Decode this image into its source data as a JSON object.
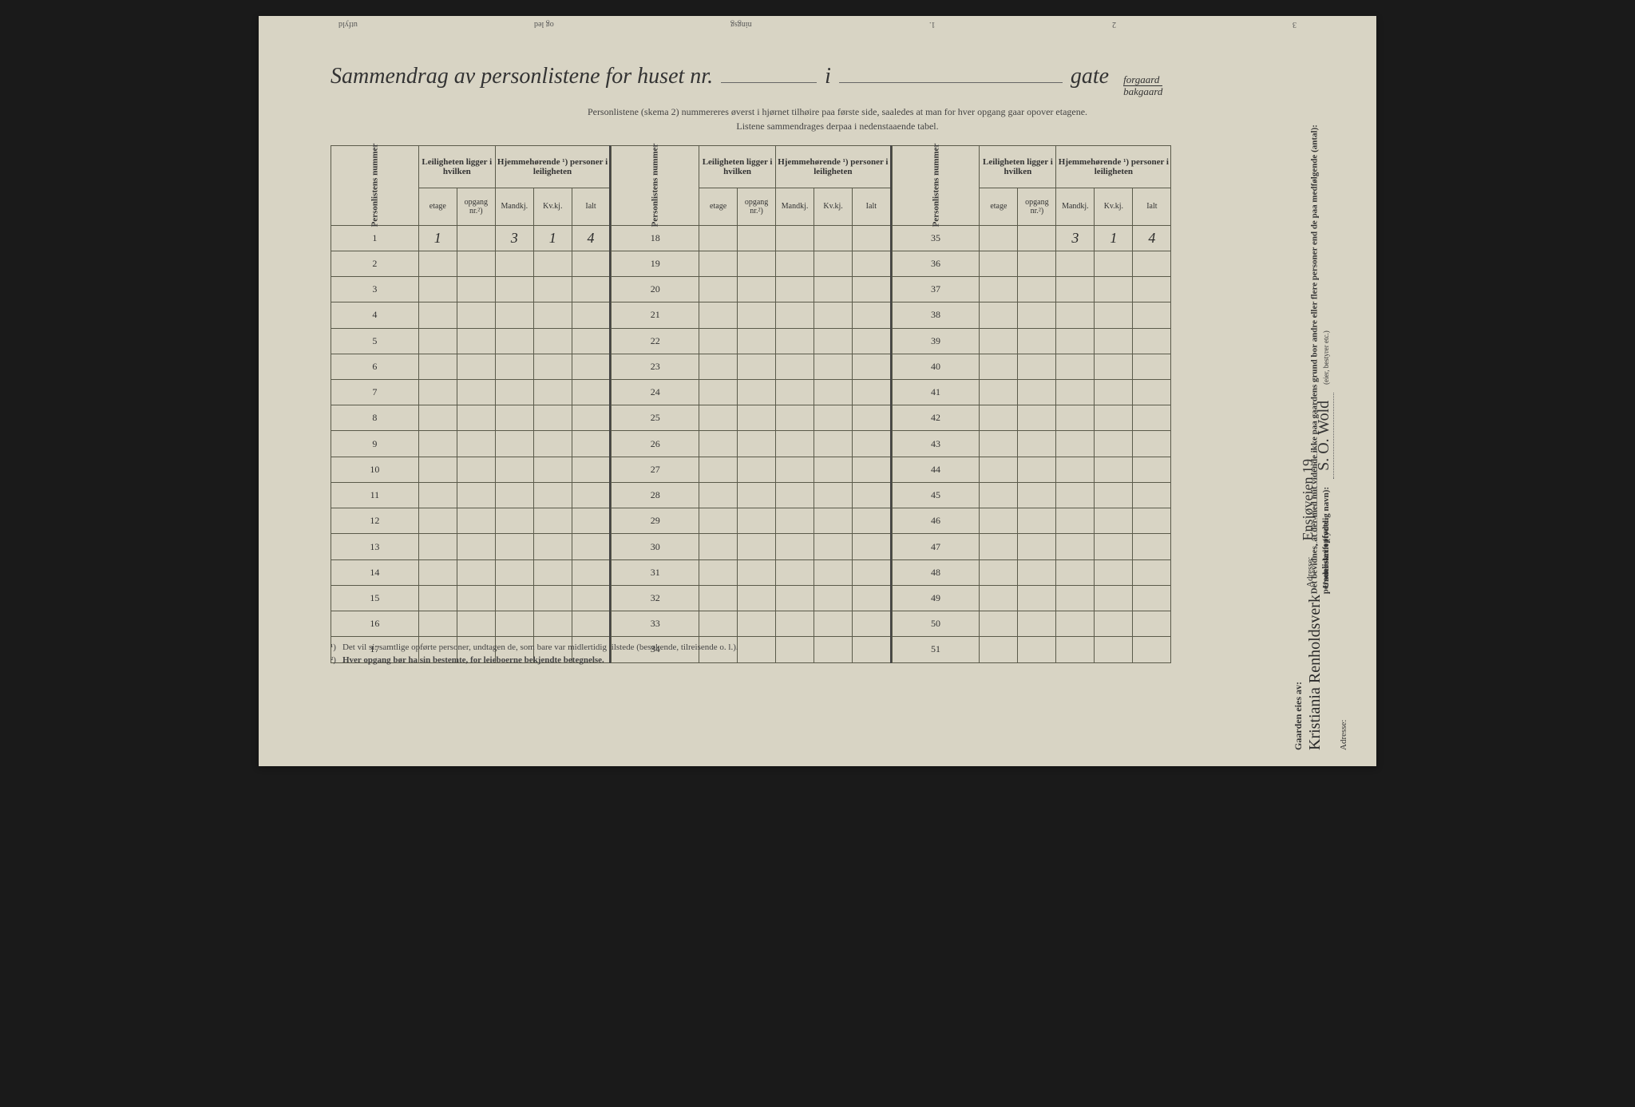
{
  "topMargin": {
    "left1": "utfyld",
    "left2": "og led",
    "left3": "ningsg",
    "num1": "1.",
    "num2": "2",
    "num3": "3"
  },
  "title": {
    "prefix": "Sammendrag av personlistene for huset nr.",
    "mid": "i",
    "suffix": "gate",
    "fraction_top": "forgaard",
    "fraction_bottom": "bakgaard"
  },
  "instructions": {
    "line1": "Personlistene (skema 2) nummereres øverst i hjørnet tilhøire paa første side, saaledes at man for hver opgang gaar opover etagene.",
    "line2": "Listene sammendrages derpaa i nedenstaaende tabel."
  },
  "headers": {
    "personlistens_nummer": "Personlistens nummer",
    "leiligheten": "Leiligheten ligger i hvilken",
    "hjemmehorende": "Hjemmehørende ¹) personer i leiligheten",
    "etage": "etage",
    "opgang": "opgang nr.²)",
    "mandkj": "Mandkj.",
    "kvkj": "Kv.kj.",
    "ialt": "Ialt"
  },
  "rows_col1": [
    1,
    2,
    3,
    4,
    5,
    6,
    7,
    8,
    9,
    10,
    11,
    12,
    13,
    14,
    15,
    16,
    17
  ],
  "rows_col2": [
    18,
    19,
    20,
    21,
    22,
    23,
    24,
    25,
    26,
    27,
    28,
    29,
    30,
    31,
    32,
    33,
    34
  ],
  "rows_col3": [
    35,
    36,
    37,
    38,
    39,
    40,
    41,
    42,
    43,
    44,
    45,
    46,
    47,
    48,
    49,
    50,
    51
  ],
  "row1_data": {
    "etage": "1",
    "opgang": "",
    "mandkj": "3",
    "kvkj": "1",
    "ialt": "4"
  },
  "totals": {
    "mandkj": "3",
    "kvkj": "1",
    "ialt": "4"
  },
  "footnotes": {
    "fn1_label": "¹)",
    "fn1_text": "Det vil si: samtlige opførte personer, undtagen de, som bare var midlertidig tilstede (besøkende, tilreisende o. l.).",
    "fn2_label": "²)",
    "fn2_text": "Hver opgang bør ha sin bestemte, for leieboerne bekjendte betegnelse."
  },
  "sidebar": {
    "attestation": "Det bevidnes, at der med mit vidende ikke paa gaardens grund bor andre eller flere personer end de paa medfølgende (antal):",
    "personlister": "personlister opførte.",
    "underskrift_label": "Underskrift (tydelig navn):",
    "signature": "S. O. Wold",
    "signature_note": "(eier, bestyrer etc.)",
    "adresse_label": "Adresse:",
    "adresse_value": "Ensjøveien 19",
    "gaarden_label": "Gaarden eies av:",
    "gaarden_value": "Kristiania Renholdsverk",
    "adresse2_label": "Adresse:"
  },
  "colors": {
    "page_bg": "#d8d4c4",
    "text": "#333333",
    "border": "#5a5a4a",
    "handwriting": "#2a2a2a"
  }
}
